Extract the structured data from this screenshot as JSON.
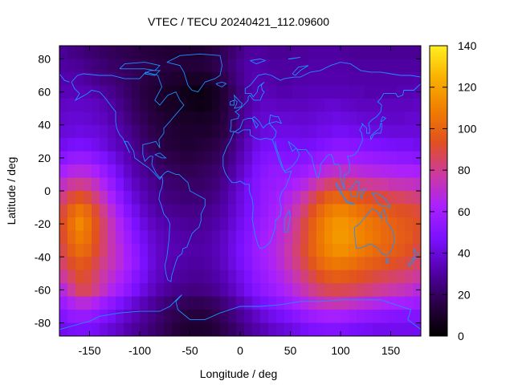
{
  "chart_data": {
    "type": "heatmap",
    "title": "VTEC / TECU 20240421_112.09600",
    "xlabel": "Longitude / deg",
    "ylabel": "Latitude / deg",
    "xlim": [
      -180,
      180
    ],
    "ylim": [
      -88,
      88
    ],
    "x_ticks": [
      -150,
      -100,
      -50,
      0,
      50,
      100,
      150
    ],
    "x_tick_labels": [
      "-150",
      "-100",
      "-50",
      "0",
      "50",
      "100",
      "150"
    ],
    "y_ticks": [
      -80,
      -60,
      -40,
      -20,
      0,
      20,
      40,
      60,
      80
    ],
    "y_tick_labels": [
      "-80",
      "-60",
      "-40",
      "-20",
      "0",
      "20",
      "40",
      "60",
      "80"
    ],
    "colorbar": {
      "range": [
        0,
        140
      ],
      "ticks": [
        0,
        20,
        40,
        60,
        80,
        100,
        120,
        140
      ],
      "tick_labels": [
        "0",
        "20",
        "40",
        "60",
        "80",
        "100",
        "120",
        "140"
      ],
      "colormap": [
        "#000000",
        "#2a0044",
        "#5200a8",
        "#7a10ff",
        "#aa20ff",
        "#cc3aa0",
        "#e05020",
        "#f07e00",
        "#f8b000",
        "#fff020"
      ]
    },
    "coastline_color": "#1e90ff",
    "grid_step_deg": 8,
    "vtec_grid": [
      [
        28,
        26,
        25,
        23,
        22,
        20,
        19,
        18,
        17,
        16,
        15,
        14,
        13,
        12,
        12,
        12,
        12,
        12,
        14,
        16,
        19,
        22,
        26,
        29,
        30,
        29,
        28,
        28,
        28,
        29,
        29,
        30,
        30,
        30,
        30,
        29,
        28,
        28,
        28,
        28,
        28,
        28,
        28,
        28,
        28
      ],
      [
        30,
        29,
        28,
        26,
        24,
        23,
        21,
        20,
        19,
        18,
        17,
        16,
        15,
        15,
        14,
        13,
        13,
        13,
        15,
        17,
        20,
        24,
        28,
        31,
        32,
        31,
        30,
        30,
        30,
        30,
        30,
        31,
        31,
        31,
        31,
        31,
        30,
        30,
        30,
        30,
        30,
        30,
        30,
        30,
        30
      ],
      [
        32,
        32,
        31,
        29,
        27,
        25,
        24,
        22,
        20,
        18,
        16,
        14,
        13,
        12,
        11,
        10,
        9,
        9,
        10,
        13,
        17,
        22,
        27,
        31,
        33,
        32,
        31,
        30,
        30,
        31,
        31,
        32,
        32,
        32,
        32,
        32,
        31,
        31,
        31,
        31,
        31,
        31,
        31,
        31,
        32
      ],
      [
        34,
        34,
        34,
        33,
        31,
        29,
        27,
        24,
        21,
        18,
        15,
        13,
        11,
        9,
        8,
        6,
        5,
        4,
        6,
        8,
        13,
        19,
        25,
        30,
        33,
        34,
        33,
        32,
        32,
        33,
        33,
        34,
        34,
        34,
        34,
        34,
        33,
        33,
        32,
        32,
        32,
        32,
        33,
        33,
        34
      ],
      [
        36,
        37,
        37,
        36,
        35,
        33,
        30,
        27,
        23,
        19,
        16,
        13,
        10,
        9,
        8,
        7,
        6,
        5,
        6,
        9,
        13,
        19,
        25,
        30,
        34,
        36,
        36,
        35,
        35,
        35,
        35,
        36,
        37,
        38,
        38,
        37,
        36,
        35,
        35,
        35,
        35,
        35,
        35,
        35,
        36
      ],
      [
        38,
        39,
        39,
        38,
        37,
        35,
        32,
        29,
        25,
        21,
        18,
        15,
        13,
        11,
        10,
        9,
        9,
        8,
        9,
        11,
        15,
        20,
        26,
        32,
        36,
        38,
        39,
        39,
        39,
        38,
        38,
        39,
        40,
        41,
        42,
        41,
        40,
        39,
        38,
        38,
        37,
        37,
        37,
        38,
        38
      ],
      [
        40,
        41,
        42,
        41,
        40,
        38,
        35,
        32,
        28,
        24,
        20,
        17,
        15,
        13,
        12,
        11,
        11,
        11,
        11,
        13,
        16,
        21,
        27,
        33,
        38,
        41,
        42,
        42,
        42,
        42,
        41,
        42,
        43,
        44,
        45,
        45,
        44,
        43,
        42,
        41,
        41,
        40,
        40,
        40,
        40
      ],
      [
        44,
        46,
        47,
        46,
        44,
        41,
        37,
        34,
        30,
        26,
        22,
        19,
        16,
        14,
        13,
        12,
        12,
        13,
        14,
        16,
        19,
        24,
        30,
        36,
        42,
        45,
        46,
        46,
        45,
        45,
        45,
        46,
        48,
        50,
        52,
        52,
        51,
        50,
        49,
        48,
        47,
        46,
        45,
        45,
        44
      ],
      [
        52,
        55,
        56,
        55,
        52,
        48,
        43,
        38,
        33,
        29,
        25,
        22,
        19,
        17,
        16,
        15,
        15,
        16,
        17,
        19,
        22,
        27,
        33,
        39,
        45,
        49,
        51,
        51,
        50,
        50,
        51,
        53,
        56,
        58,
        60,
        60,
        59,
        58,
        57,
        56,
        55,
        54,
        53,
        53,
        52
      ],
      [
        62,
        66,
        67,
        66,
        62,
        56,
        50,
        43,
        37,
        32,
        28,
        25,
        22,
        20,
        19,
        18,
        18,
        19,
        20,
        22,
        25,
        30,
        36,
        42,
        48,
        52,
        54,
        55,
        55,
        56,
        58,
        62,
        66,
        69,
        71,
        71,
        70,
        68,
        67,
        66,
        65,
        64,
        63,
        63,
        62
      ],
      [
        72,
        78,
        80,
        78,
        72,
        64,
        56,
        48,
        41,
        35,
        31,
        28,
        25,
        23,
        22,
        21,
        21,
        21,
        22,
        24,
        28,
        33,
        39,
        45,
        50,
        54,
        56,
        58,
        60,
        63,
        67,
        73,
        79,
        84,
        86,
        85,
        83,
        81,
        79,
        78,
        77,
        75,
        74,
        73,
        72
      ],
      [
        82,
        90,
        94,
        90,
        82,
        72,
        62,
        53,
        45,
        39,
        34,
        30,
        27,
        25,
        24,
        23,
        23,
        23,
        24,
        26,
        30,
        35,
        41,
        46,
        51,
        55,
        58,
        61,
        65,
        70,
        77,
        85,
        92,
        98,
        100,
        99,
        97,
        95,
        93,
        91,
        89,
        87,
        86,
        84,
        82
      ],
      [
        90,
        100,
        106,
        101,
        91,
        80,
        69,
        59,
        50,
        43,
        37,
        33,
        30,
        28,
        27,
        26,
        26,
        26,
        27,
        29,
        32,
        37,
        42,
        47,
        52,
        56,
        60,
        64,
        69,
        76,
        84,
        93,
        101,
        107,
        110,
        110,
        107,
        104,
        101,
        99,
        97,
        95,
        93,
        92,
        90
      ],
      [
        93,
        104,
        112,
        106,
        95,
        84,
        73,
        64,
        55,
        47,
        41,
        36,
        33,
        31,
        30,
        29,
        28,
        28,
        29,
        31,
        34,
        39,
        44,
        49,
        54,
        58,
        62,
        67,
        73,
        80,
        89,
        98,
        106,
        112,
        116,
        116,
        113,
        110,
        107,
        104,
        101,
        99,
        97,
        95,
        93
      ],
      [
        92,
        102,
        108,
        104,
        94,
        84,
        74,
        66,
        58,
        50,
        44,
        39,
        35,
        33,
        32,
        31,
        30,
        30,
        31,
        33,
        36,
        41,
        46,
        51,
        56,
        60,
        64,
        69,
        75,
        82,
        90,
        99,
        107,
        113,
        117,
        117,
        114,
        111,
        108,
        105,
        102,
        100,
        98,
        96,
        92
      ],
      [
        89,
        98,
        103,
        100,
        92,
        83,
        75,
        68,
        60,
        53,
        46,
        40,
        36,
        34,
        33,
        32,
        31,
        31,
        32,
        34,
        37,
        42,
        47,
        52,
        57,
        61,
        65,
        70,
        76,
        83,
        91,
        99,
        106,
        111,
        114,
        114,
        111,
        108,
        105,
        102,
        100,
        98,
        96,
        93,
        89
      ],
      [
        85,
        92,
        96,
        94,
        88,
        80,
        74,
        68,
        61,
        54,
        47,
        41,
        36,
        33,
        32,
        31,
        30,
        30,
        31,
        33,
        36,
        41,
        46,
        51,
        56,
        60,
        64,
        69,
        75,
        81,
        88,
        95,
        101,
        105,
        107,
        106,
        104,
        101,
        99,
        97,
        95,
        93,
        91,
        89,
        85
      ],
      [
        78,
        86,
        92,
        90,
        84,
        76,
        70,
        64,
        58,
        51,
        45,
        39,
        35,
        32,
        30,
        29,
        28,
        28,
        29,
        31,
        34,
        38,
        43,
        48,
        53,
        57,
        61,
        65,
        70,
        76,
        82,
        88,
        93,
        96,
        98,
        97,
        95,
        93,
        91,
        89,
        87,
        85,
        83,
        81,
        78
      ],
      [
        68,
        78,
        86,
        86,
        80,
        72,
        65,
        59,
        53,
        47,
        41,
        36,
        32,
        29,
        27,
        26,
        25,
        25,
        26,
        28,
        31,
        35,
        40,
        45,
        50,
        54,
        57,
        61,
        65,
        70,
        75,
        80,
        84,
        87,
        88,
        87,
        86,
        84,
        82,
        80,
        78,
        76,
        74,
        72,
        68
      ],
      [
        58,
        64,
        68,
        68,
        64,
        58,
        53,
        48,
        43,
        38,
        34,
        30,
        26,
        23,
        21,
        19,
        18,
        18,
        19,
        21,
        24,
        28,
        33,
        38,
        43,
        47,
        50,
        53,
        57,
        61,
        65,
        69,
        72,
        74,
        75,
        74,
        72,
        70,
        68,
        66,
        64,
        62,
        61,
        60,
        58
      ],
      [
        50,
        54,
        56,
        56,
        53,
        49,
        45,
        41,
        37,
        33,
        29,
        26,
        22,
        19,
        17,
        15,
        14,
        14,
        15,
        17,
        20,
        24,
        28,
        32,
        36,
        40,
        43,
        46,
        49,
        52,
        55,
        58,
        60,
        61,
        61,
        60,
        58,
        56,
        54,
        53,
        52,
        51,
        50,
        50,
        50
      ],
      [
        44,
        46,
        47,
        47,
        45,
        42,
        39,
        36,
        32,
        29,
        26,
        23,
        20,
        17,
        14,
        12,
        11,
        11,
        12,
        14,
        17,
        20,
        24,
        28,
        31,
        34,
        37,
        39,
        41,
        43,
        46,
        48,
        49,
        50,
        50,
        49,
        47,
        46,
        45,
        44,
        44,
        44,
        44,
        44,
        44
      ],
      [
        40,
        41,
        42,
        42,
        41,
        39,
        36,
        33,
        30,
        27,
        24,
        21,
        18,
        14,
        12,
        10,
        8,
        8,
        9,
        11,
        14,
        17,
        20,
        24,
        27,
        30,
        32,
        34,
        36,
        38,
        40,
        41,
        42,
        42,
        42,
        41,
        40,
        39,
        39,
        39,
        39,
        39,
        39,
        40,
        40
      ]
    ]
  }
}
